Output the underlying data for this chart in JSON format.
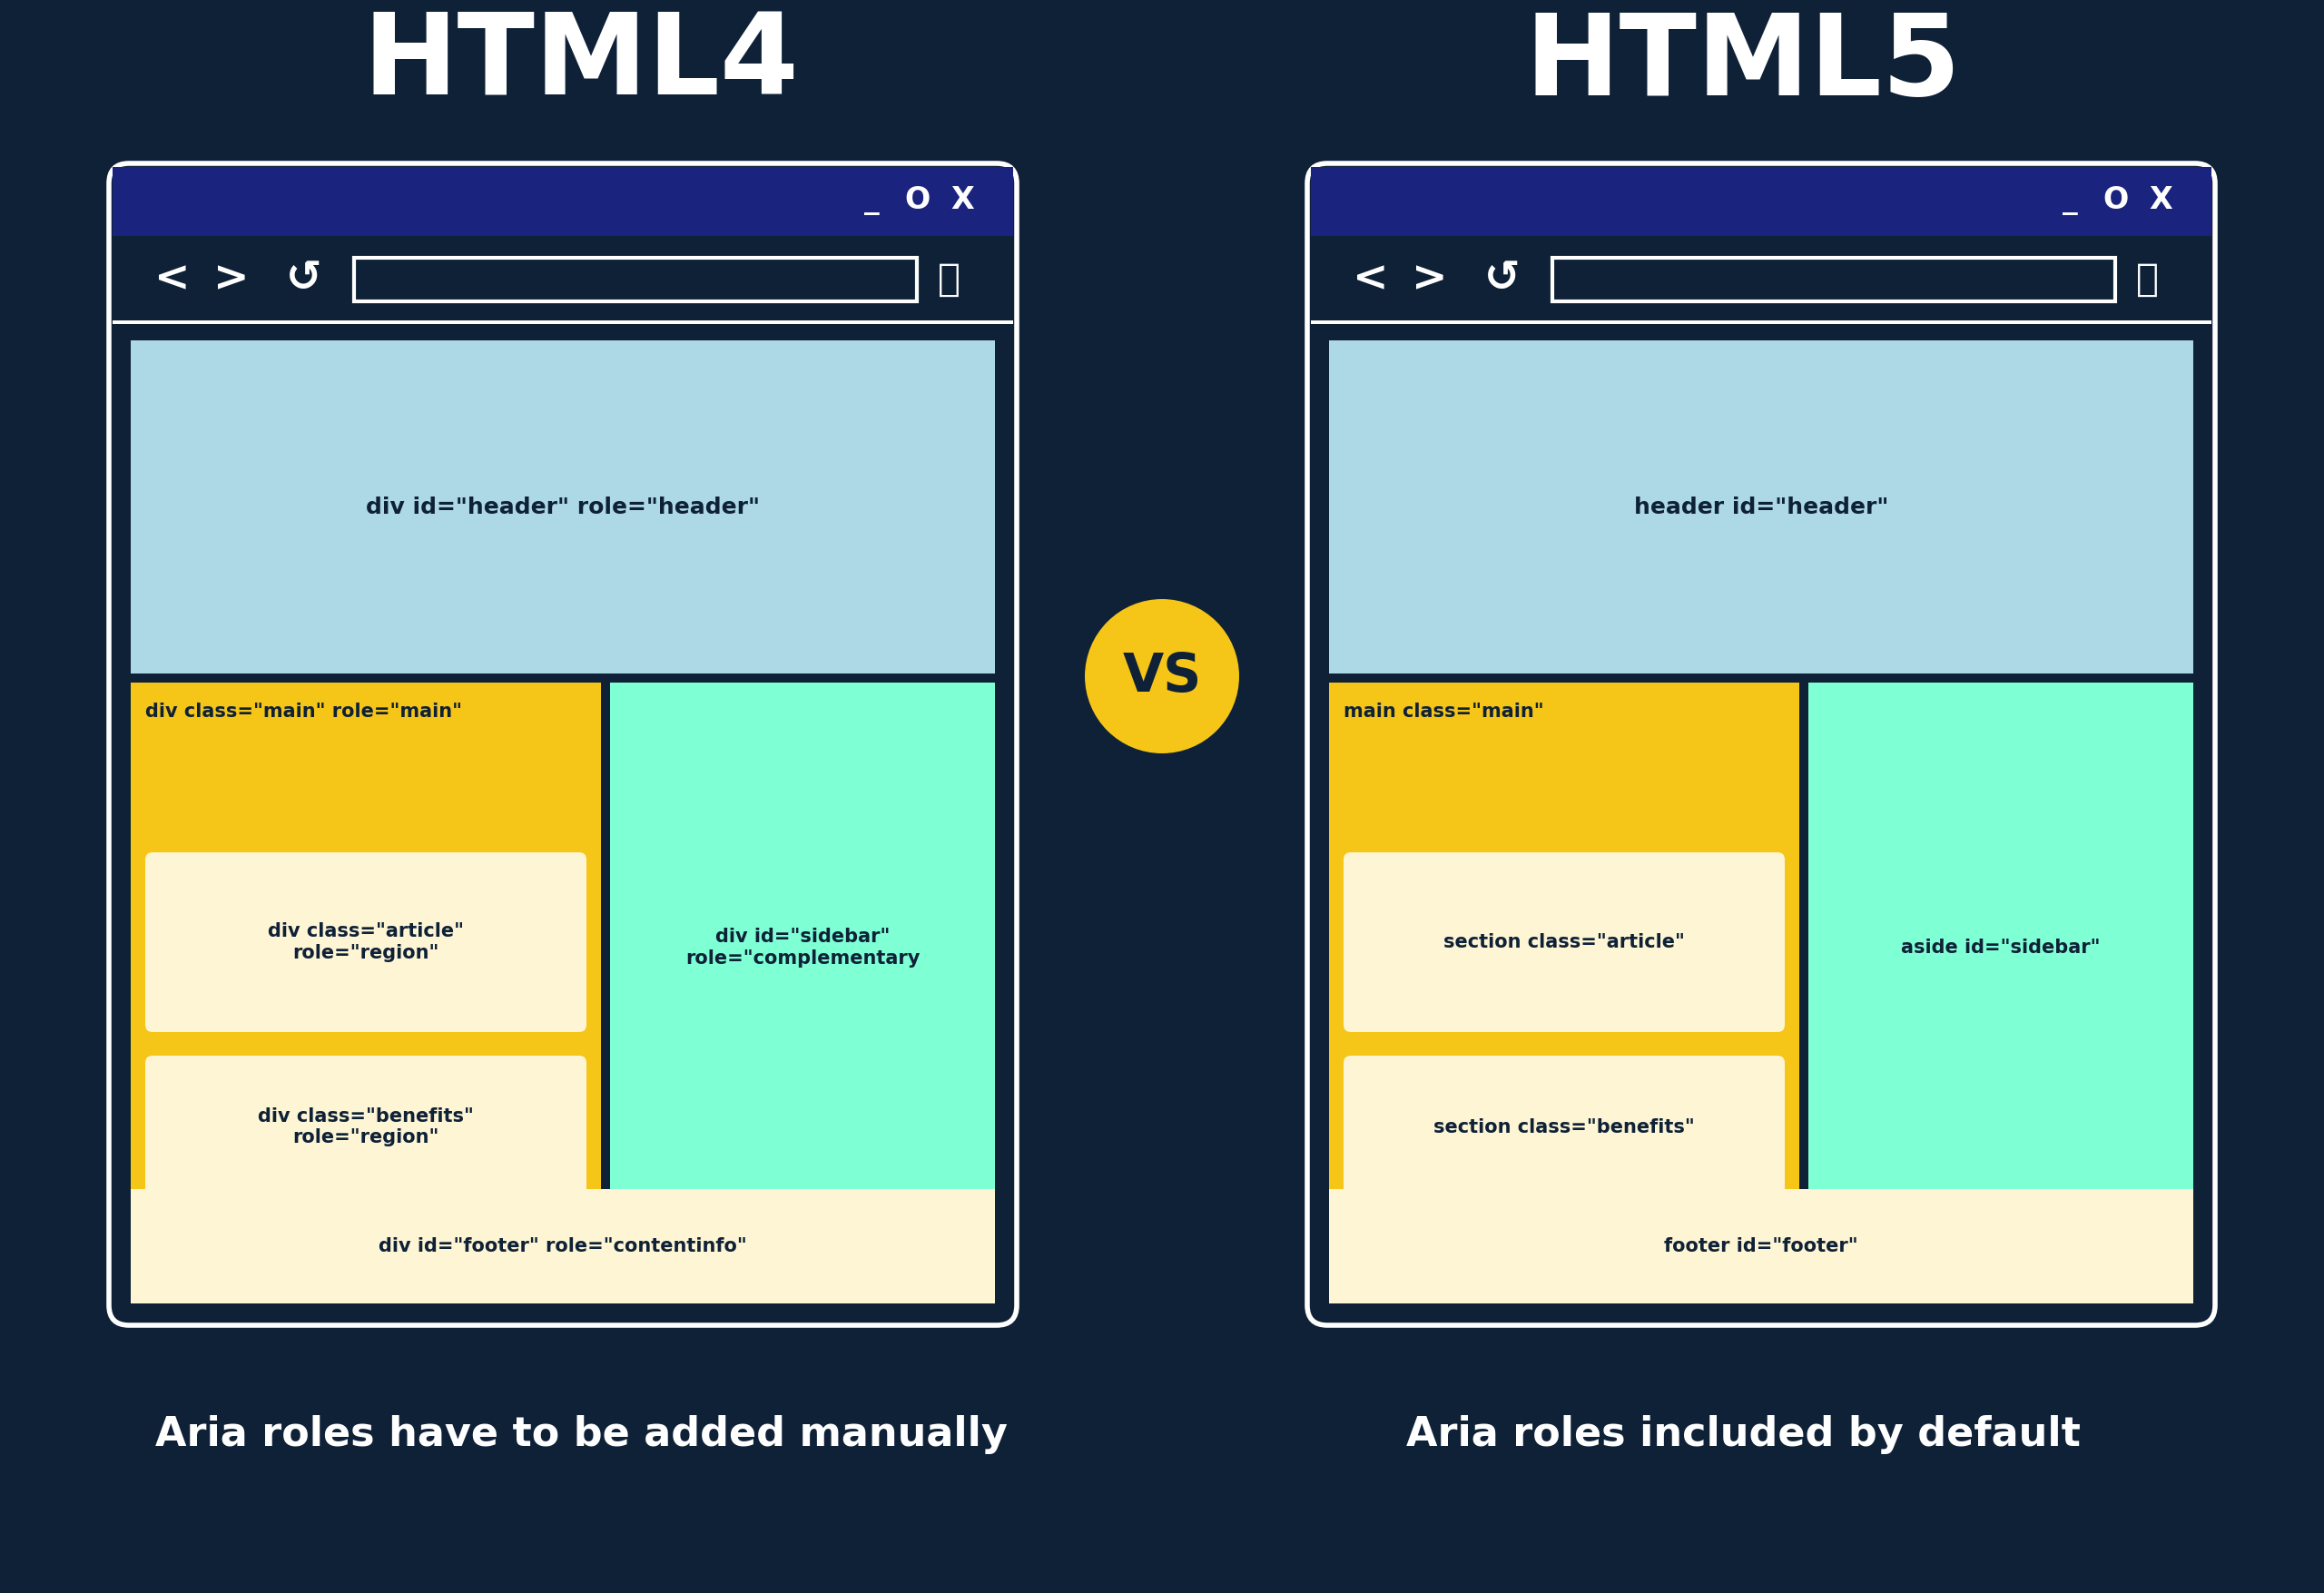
{
  "bg_color": "#0e2137",
  "title_left": "HTML4",
  "title_right": "HTML5",
  "title_color": "#ffffff",
  "title_fontsize": 90,
  "vs_color": "#f5c518",
  "vs_text_color": "#0e2137",
  "browser_border_color": "#ffffff",
  "browser_titlebar_color": "#1a237e",
  "browser_nav_color": "#0e2137",
  "header_bg": "#add8e6",
  "main_yellow": "#f5c518",
  "article_bg": "#fef5d4",
  "sidebar_bg": "#7fffd4",
  "footer_bg": "#fef5d4",
  "text_dark": "#0e2137",
  "left_header_text": "div id=\"header\" role=\"header\"",
  "left_main_text": "div class=\"main\" role=\"main\"",
  "left_article_text": "div class=\"article\"\nrole=\"region\"",
  "left_benefits_text": "div class=\"benefits\"\nrole=\"region\"",
  "left_sidebar_text": "div id=\"sidebar\"\nrole=\"complementary",
  "left_footer_text": "div id=\"footer\" role=\"contentinfo\"",
  "right_header_text": "header id=\"header\"",
  "right_main_text": "main class=\"main\"",
  "right_article_text": "section class=\"article\"",
  "right_benefits_text": "section class=\"benefits\"",
  "right_sidebar_text": "aside id=\"sidebar\"",
  "right_footer_text": "footer id=\"footer\"",
  "subtitle_left": "Aria roles have to be added manually",
  "subtitle_right": "Aria roles included by default",
  "subtitle_color": "#ffffff",
  "subtitle_fontsize": 32
}
